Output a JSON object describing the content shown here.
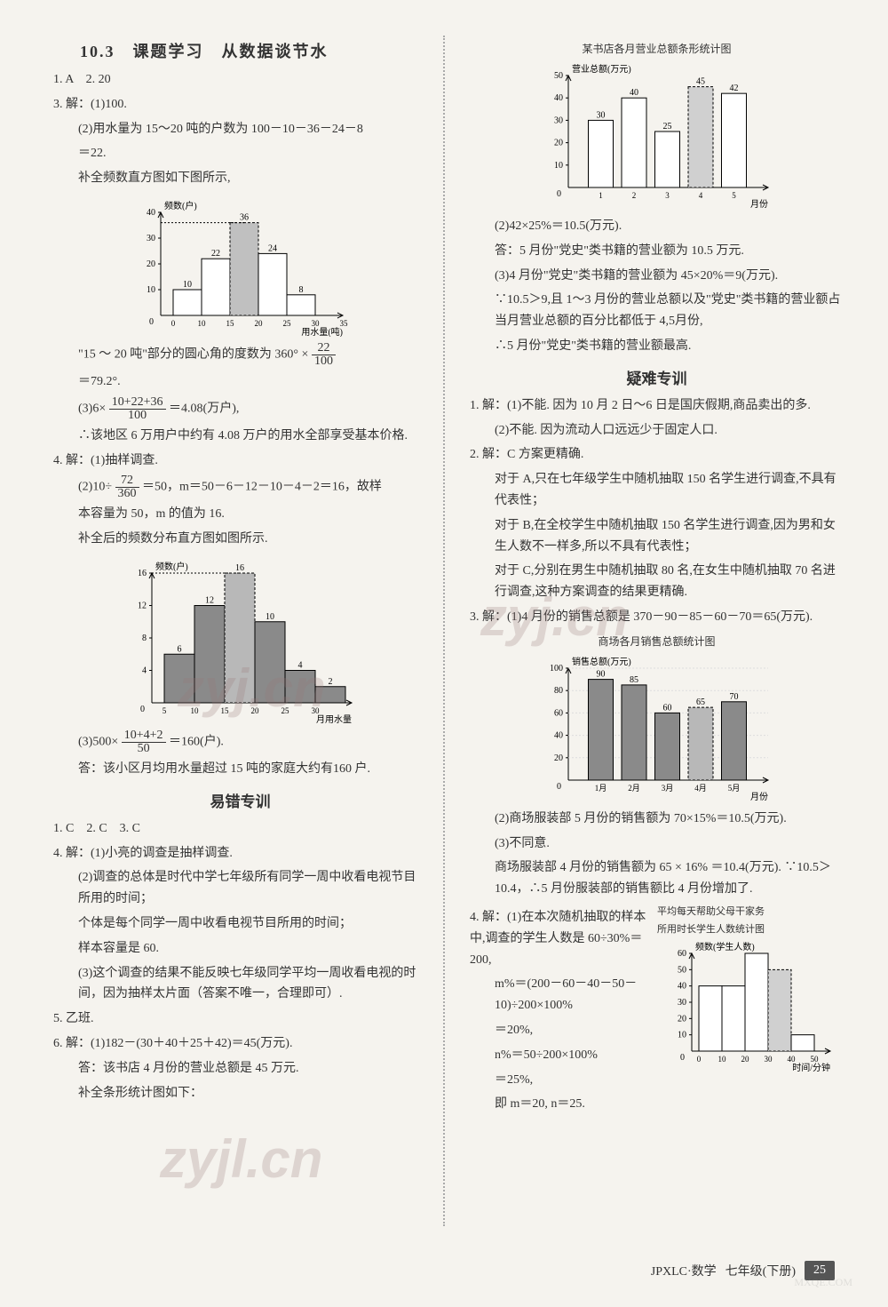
{
  "left": {
    "title": "10.3　课题学习　从数据谈节水",
    "l1": "1. A　2. 20",
    "l2": "3. 解：(1)100.",
    "l3": "(2)用水量为 15～20 吨的户数为 100－10－36－24－8",
    "l4": "＝22.",
    "l5": "补全频数直方图如下图所示,",
    "chart1": {
      "ylabel": "频数(户)",
      "xlabel": "用水量(吨)",
      "xcats": [
        "0",
        "10",
        "15",
        "20",
        "25",
        "30",
        "35"
      ],
      "yticks": [
        10,
        20,
        30,
        40
      ],
      "bars": [
        {
          "x": 1,
          "v": 10,
          "label": "10",
          "fill": "#ffffff"
        },
        {
          "x": 2,
          "v": 22,
          "label": "22",
          "fill": "#ffffff"
        },
        {
          "x": 3,
          "v": 36,
          "label": "36",
          "fill": "#c0c0c0",
          "dashed": true
        },
        {
          "x": 4,
          "v": 24,
          "label": "24",
          "fill": "#ffffff"
        },
        {
          "x": 5,
          "v": 8,
          "label": "8",
          "fill": "#ffffff"
        }
      ],
      "ylim": 40,
      "bar_color": "#ffffff",
      "border": "#000000",
      "dash_color": "#000000"
    },
    "l6a": "\"15 ～ 20 吨\"部分的圆心角的度数为 360° × ",
    "frac1": {
      "n": "22",
      "d": "100"
    },
    "l7": "＝79.2°.",
    "l8a": "(3)6×",
    "frac2": {
      "n": "10+22+36",
      "d": "100"
    },
    "l8b": "＝4.08(万户),",
    "l9": "∴该地区 6 万用户中约有 4.08 万户的用水全部享受基本价格.",
    "l10": "4. 解：(1)抽样调查.",
    "l11a": "(2)10÷",
    "frac3": {
      "n": "72",
      "d": "360"
    },
    "l11b": "＝50，m＝50－6－12－10－4－2＝16，故样",
    "l12": "本容量为 50，m 的值为 16.",
    "l13": "补全后的频数分布直方图如图所示.",
    "chart2": {
      "ylabel": "频数(户)",
      "xlabel": "月用水量",
      "xcats": [
        "5",
        "10",
        "15",
        "20",
        "25",
        "30"
      ],
      "yticks": [
        4,
        8,
        12,
        16
      ],
      "bars": [
        {
          "v": 6,
          "label": "6",
          "fill": "#8a8a8a"
        },
        {
          "v": 12,
          "label": "12",
          "fill": "#8a8a8a"
        },
        {
          "v": 16,
          "label": "16",
          "fill": "#b8b8b8",
          "dashed": true
        },
        {
          "v": 10,
          "label": "10",
          "fill": "#8a8a8a"
        },
        {
          "v": 4,
          "label": "4",
          "fill": "#8a8a8a"
        },
        {
          "v": 2,
          "label": "2",
          "fill": "#8a8a8a"
        }
      ],
      "ylim": 16
    },
    "l14a": "(3)500×",
    "frac4": {
      "n": "10+4+2",
      "d": "50"
    },
    "l14b": "＝160(户).",
    "l15": "答：该小区月均用水量超过 15 吨的家庭大约有160 户.",
    "sub1": "易错专训",
    "l16": "1. C　2. C　3. C",
    "l17": "4. 解：(1)小亮的调查是抽样调查.",
    "l18": "(2)调查的总体是时代中学七年级所有同学一周中收看电视节目所用的时间；",
    "l19": "个体是每个同学一周中收看电视节目所用的时间；",
    "l20": "样本容量是 60.",
    "l21": "(3)这个调查的结果不能反映七年级同学平均一周收看电视的时间，因为抽样太片面（答案不唯一，合理即可）.",
    "l22": "5. 乙班.",
    "l23": "6. 解：(1)182－(30＋40＋25＋42)＝45(万元).",
    "l24": "答：该书店 4 月份的营业总额是 45 万元.",
    "l25": "补全条形统计图如下："
  },
  "right": {
    "chart3": {
      "title": "某书店各月营业总额条形统计图",
      "ylabel": "营业总额(万元)",
      "xlabel": "月份",
      "xcats": [
        "1",
        "2",
        "3",
        "4",
        "5"
      ],
      "yticks": [
        10,
        20,
        30,
        40,
        50
      ],
      "bars": [
        {
          "v": 30,
          "label": "30",
          "fill": "#ffffff"
        },
        {
          "v": 40,
          "label": "40",
          "fill": "#ffffff"
        },
        {
          "v": 25,
          "label": "25",
          "fill": "#ffffff"
        },
        {
          "v": 45,
          "label": "45",
          "fill": "#d0d0d0",
          "dashed": true
        },
        {
          "v": 42,
          "label": "42",
          "fill": "#ffffff"
        }
      ],
      "ylim": 50
    },
    "r1": "(2)42×25%＝10.5(万元).",
    "r2": "答：5 月份\"党史\"类书籍的营业额为 10.5 万元.",
    "r3": "(3)4 月份\"党史\"类书籍的营业额为 45×20%＝9(万元).",
    "r4": "∵10.5＞9,且 1～3 月份的营业总额以及\"党史\"类书籍的营业额占当月营业总额的百分比都低于 4,5月份,",
    "r5": "∴5 月份\"党史\"类书籍的营业额最高.",
    "sub2": "疑难专训",
    "r6": "1. 解：(1)不能. 因为 10 月 2 日～6 日是国庆假期,商品卖出的多.",
    "r7": "(2)不能. 因为流动人口远远少于固定人口.",
    "r8": "2. 解：C 方案更精确.",
    "r9": "对于 A,只在七年级学生中随机抽取 150 名学生进行调查,不具有代表性；",
    "r10": "对于 B,在全校学生中随机抽取 150 名学生进行调查,因为男和女生人数不一样多,所以不具有代表性；",
    "r11": "对于 C,分别在男生中随机抽取 80 名,在女生中随机抽取 70 名进行调查,这种方案调查的结果更精确.",
    "r12": "3. 解：(1)4 月份的销售总额是 370－90－85－60－70＝65(万元).",
    "chart4": {
      "title": "商场各月销售总额统计图",
      "ylabel": "销售总额(万元)",
      "xlabel": "月份",
      "xcats": [
        "1月",
        "2月",
        "3月",
        "4月",
        "5月"
      ],
      "yticks": [
        20,
        40,
        60,
        80,
        100
      ],
      "bars": [
        {
          "v": 90,
          "label": "90",
          "fill": "#8a8a8a"
        },
        {
          "v": 85,
          "label": "85",
          "fill": "#8a8a8a"
        },
        {
          "v": 60,
          "label": "60",
          "fill": "#8a8a8a"
        },
        {
          "v": 65,
          "label": "65",
          "fill": "#b8b8b8",
          "dashed": true
        },
        {
          "v": 70,
          "label": "70",
          "fill": "#8a8a8a"
        }
      ],
      "ylim": 100
    },
    "r13": "(2)商场服装部 5 月份的销售额为 70×15%＝10.5(万元).",
    "r14": "(3)不同意.",
    "r15": "商场服装部 4 月份的销售额为 65 × 16% ＝10.4(万元). ∵10.5＞10.4，∴5 月份服装部的销售额比 4 月份增加了.",
    "r16": "4. 解：(1)在本次随机抽取的样本中,调查的学生人数是 60÷30%＝200,",
    "r17": "m%＝(200－60－40－50－10)÷200×100%",
    "r18": "＝20%,",
    "r19": "n%＝50÷200×100%",
    "r20": "＝25%,",
    "r21": "即 m＝20, n＝25.",
    "chart5": {
      "title1": "平均每天帮助父母干家务",
      "title2": "所用时长学生人数统计图",
      "ylabel": "频数(学生人数)",
      "xlabel": "时间/分钟",
      "xcats": [
        "0",
        "10",
        "20",
        "30",
        "40",
        "50"
      ],
      "yticks": [
        10,
        20,
        30,
        40,
        50,
        60
      ],
      "bars": [
        {
          "v": 40,
          "fill": "#ffffff"
        },
        {
          "v": 40,
          "fill": "#ffffff"
        },
        {
          "v": 60,
          "fill": "#ffffff"
        },
        {
          "v": 50,
          "fill": "#d0d0d0",
          "dashed": true
        },
        {
          "v": 10,
          "fill": "#ffffff"
        }
      ],
      "ylim": 60
    }
  },
  "footer": {
    "code": "JPXLC·数学",
    "grade": "七年级(下册)",
    "page": "25"
  },
  "watermarks": {
    "w1": "zyj.cn",
    "w2": "zyjl.cn",
    "corner": "MXQE.COM"
  }
}
